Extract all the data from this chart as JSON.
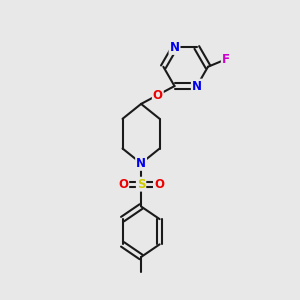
{
  "background_color": "#e8e8e8",
  "bond_color": "#1a1a1a",
  "bond_width": 1.5,
  "atom_colors": {
    "N": "#0000ee",
    "O": "#ee0000",
    "F": "#cc00cc",
    "S": "#cccc00",
    "C": "#1a1a1a"
  },
  "font_size_atom": 8.5,
  "figsize": [
    3.0,
    3.0
  ],
  "dpi": 100,
  "xlim": [
    0,
    10
  ],
  "ylim": [
    0,
    10
  ]
}
